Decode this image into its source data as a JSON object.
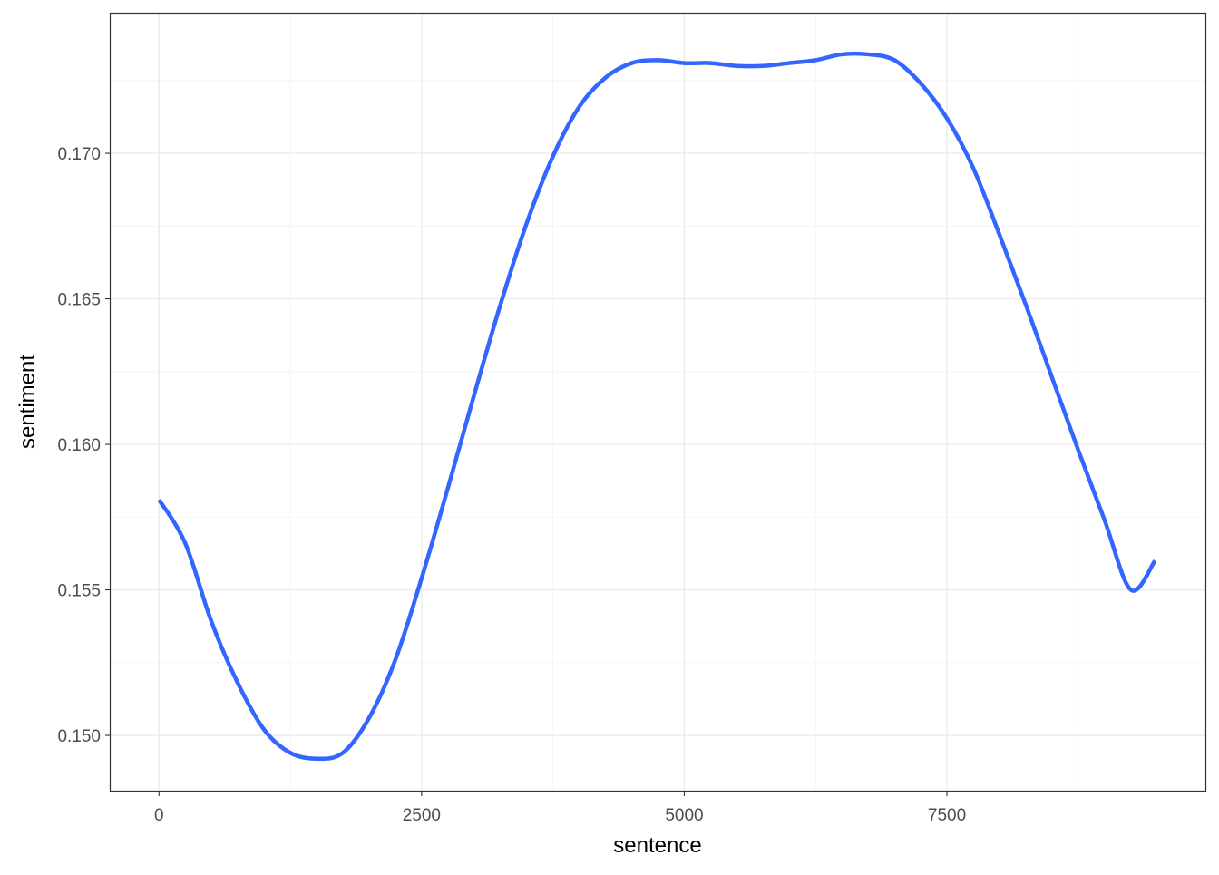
{
  "chart_data": {
    "type": "line",
    "title": "",
    "xlabel": "sentence",
    "ylabel": "sentiment",
    "xlim": [
      -460,
      9960
    ],
    "ylim": [
      0.1481,
      0.1748
    ],
    "x_ticks": [
      0,
      2500,
      5000,
      7500
    ],
    "x_tick_labels": [
      "0",
      "2500",
      "5000",
      "7500"
    ],
    "y_ticks": [
      0.15,
      0.155,
      0.16,
      0.165,
      0.17
    ],
    "y_tick_labels": [
      "0.150",
      "0.155",
      "0.160",
      "0.165",
      "0.170"
    ],
    "grid": true,
    "legend": "none",
    "series": [
      {
        "color": "#3366ff",
        "x": [
          0,
          250,
          500,
          750,
          1000,
          1250,
          1500,
          1750,
          2000,
          2250,
          2500,
          2750,
          3000,
          3250,
          3500,
          3750,
          4000,
          4250,
          4500,
          4750,
          5000,
          5250,
          5500,
          5750,
          6000,
          6250,
          6500,
          6750,
          7000,
          7250,
          7500,
          7750,
          8000,
          8250,
          8500,
          8750,
          9000,
          9250,
          9480
        ],
        "y": [
          0.1581,
          0.1566,
          0.1539,
          0.1518,
          0.1502,
          0.1494,
          0.1492,
          0.1494,
          0.1506,
          0.1526,
          0.1554,
          0.1585,
          0.1617,
          0.1648,
          0.1676,
          0.1699,
          0.1716,
          0.1726,
          0.1731,
          0.1732,
          0.1731,
          0.1731,
          0.173,
          0.173,
          0.1731,
          0.1732,
          0.1734,
          0.1734,
          0.1732,
          0.1724,
          0.1712,
          0.1695,
          0.1672,
          0.1648,
          0.1623,
          0.1598,
          0.1574,
          0.155,
          0.156
        ]
      }
    ]
  }
}
